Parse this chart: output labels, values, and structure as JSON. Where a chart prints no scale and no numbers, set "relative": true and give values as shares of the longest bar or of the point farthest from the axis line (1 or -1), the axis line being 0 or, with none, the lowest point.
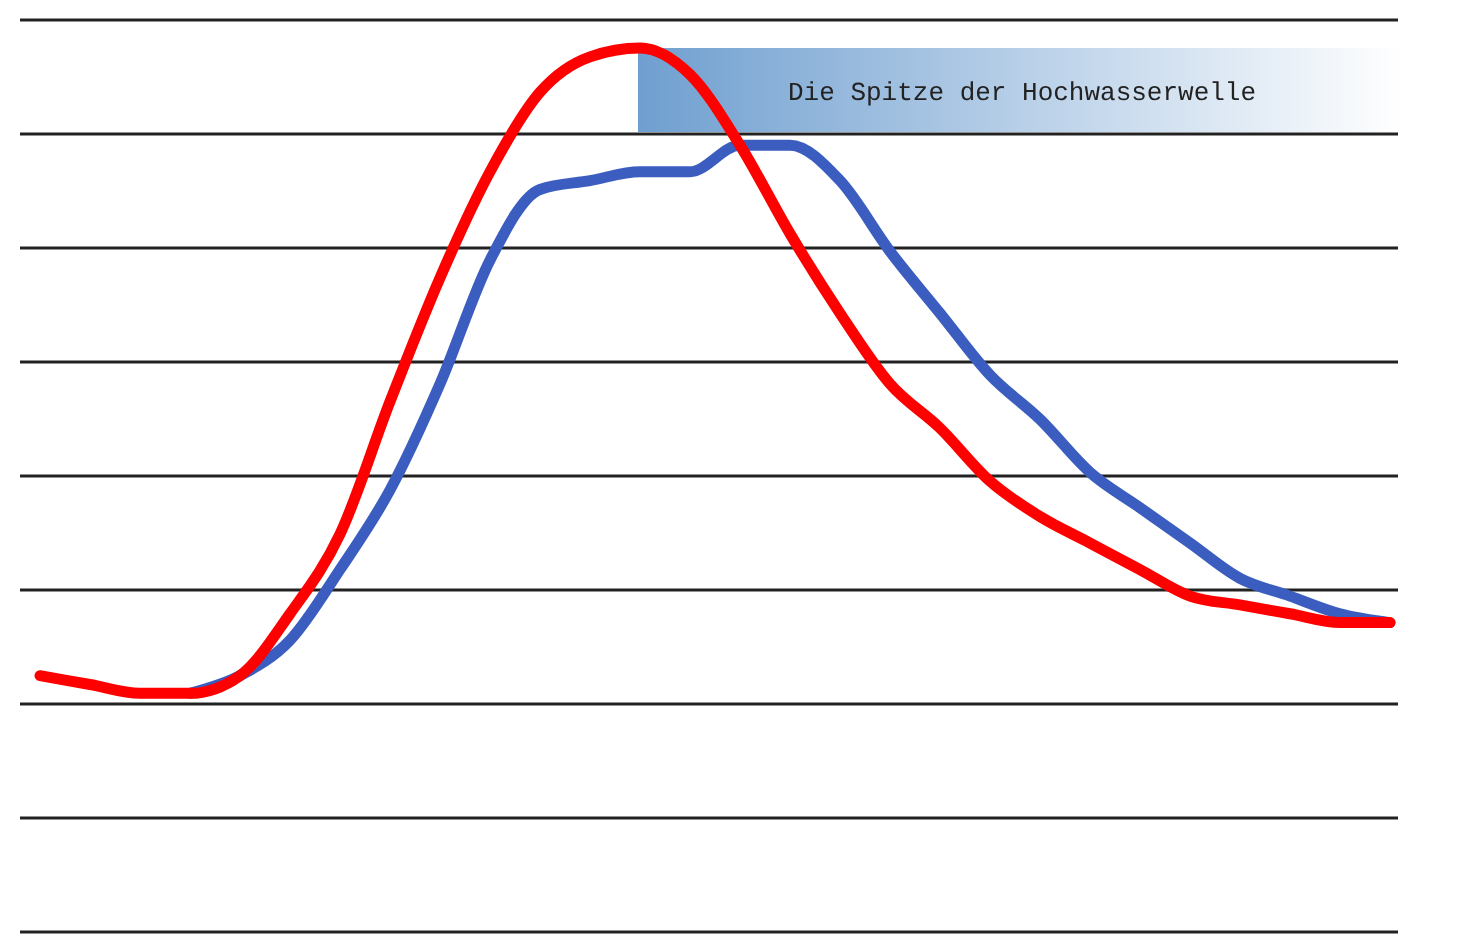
{
  "chart_data": {
    "type": "line",
    "relative": true,
    "grid": "y",
    "line_style": "solid",
    "annotations": [
      "Die Spitze der Hochwasserwelle"
    ],
    "categories": [
      null,
      null,
      null,
      null,
      null,
      null,
      null,
      null,
      null,
      null,
      null,
      null,
      null,
      null,
      null,
      null,
      null,
      null,
      null,
      null,
      null,
      null,
      null,
      null,
      null,
      null,
      null,
      null
    ],
    "series": [
      {
        "color": "#3a5dbf",
        "values": [
          null,
          null,
          null,
          0.27,
          0.29,
          0.33,
          0.41,
          0.5,
          0.62,
          0.76,
          0.84,
          0.85,
          0.86,
          0.86,
          0.89,
          0.89,
          0.85,
          0.77,
          0.7,
          0.63,
          0.58,
          0.52,
          0.48,
          0.44,
          0.4,
          0.38,
          0.36,
          0.35
        ]
      },
      {
        "color": "#ff0000",
        "values": [
          0.29,
          0.28,
          0.27,
          0.27,
          0.29,
          0.36,
          0.45,
          0.6,
          0.74,
          0.86,
          0.95,
          0.99,
          1,
          0.97,
          0.89,
          0.79,
          0.7,
          0.62,
          0.57,
          0.51,
          0.47,
          0.44,
          0.41,
          0.38,
          0.37,
          0.36,
          0.35,
          0.35
        ]
      }
    ]
  }
}
